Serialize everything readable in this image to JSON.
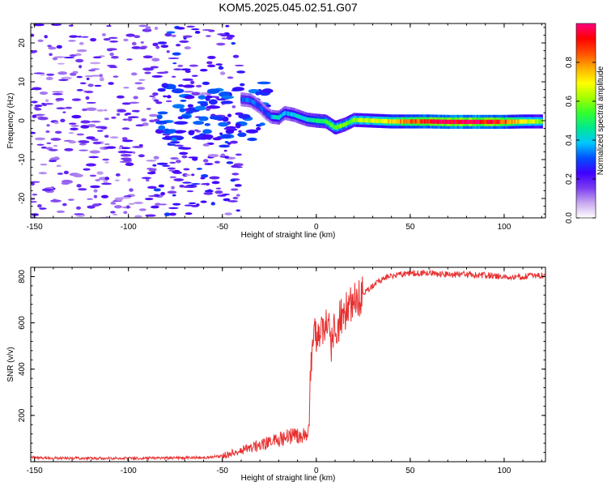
{
  "title": "KOM5.2025.045.02.51.G07",
  "chart_data": [
    {
      "type": "heatmap",
      "xlabel": "Height of straight line (km)",
      "ylabel": "Frequency (Hz)",
      "xlim": [
        -152,
        122
      ],
      "ylim": [
        -25,
        25
      ],
      "x_ticks": [
        -150,
        -100,
        -50,
        0,
        50,
        100
      ],
      "y_ticks": [
        -20,
        -10,
        0,
        10,
        20
      ],
      "colorbar": {
        "label": "Normalized spectral amplitude",
        "range": [
          0,
          1
        ],
        "ticks": [
          "0.0",
          "0.2",
          "0.4",
          "0.6",
          "0.8"
        ],
        "colors": [
          "#ffffff",
          "#c8a8f0",
          "#7a3cf0",
          "#4000ff",
          "#0050ff",
          "#00c8ff",
          "#00e890",
          "#30ff30",
          "#a0ff00",
          "#ffff00",
          "#ffb000",
          "#ff5000",
          "#ff0000",
          "#ff0080"
        ]
      },
      "ridge": {
        "name": "dominant frequency",
        "x": [
          -40,
          -35,
          -30,
          -27,
          -24,
          -20,
          -17,
          -12,
          -8,
          -5,
          0,
          5,
          10,
          15,
          20,
          30,
          40,
          50,
          60,
          70,
          80,
          90,
          100,
          110,
          120
        ],
        "frequency": [
          5.5,
          5.2,
          3.5,
          2.0,
          1.0,
          0.8,
          2.0,
          1.5,
          0.8,
          0.3,
          0.0,
          -0.2,
          -1.8,
          -1.0,
          0.2,
          0.0,
          -0.2,
          -0.2,
          -0.2,
          -0.3,
          -0.3,
          -0.3,
          -0.3,
          -0.2,
          -0.2
        ],
        "amplitude": [
          0.3,
          0.35,
          0.3,
          0.3,
          0.35,
          0.45,
          0.35,
          0.4,
          0.4,
          0.45,
          0.5,
          0.55,
          0.6,
          0.55,
          0.6,
          0.65,
          0.75,
          0.85,
          0.9,
          0.95,
          0.98,
          0.95,
          0.85,
          0.7,
          0.6
        ]
      }
    },
    {
      "type": "line",
      "xlabel": "Height of straight line (km)",
      "ylabel": "SNR (v/v)",
      "xlim": [
        -152,
        122
      ],
      "ylim": [
        0,
        840
      ],
      "x_ticks": [
        -150,
        -100,
        -50,
        0,
        50,
        100
      ],
      "y_ticks": [
        200,
        400,
        600,
        800
      ],
      "color": "#e83030",
      "series": [
        {
          "x": [
            -152,
            -140,
            -120,
            -100,
            -80,
            -60,
            -50,
            -45,
            -40,
            -35,
            -30,
            -25,
            -20,
            -15,
            -10,
            -5,
            -4,
            -3,
            -2,
            0,
            2,
            4,
            6,
            8,
            10,
            12,
            15,
            20,
            25,
            30,
            35,
            40,
            45,
            50,
            55,
            60,
            70,
            80,
            90,
            100,
            110,
            122
          ],
          "values": [
            18,
            15,
            15,
            14,
            16,
            18,
            25,
            35,
            48,
            58,
            72,
            82,
            95,
            110,
            115,
            120,
            125,
            380,
            540,
            560,
            520,
            620,
            580,
            520,
            560,
            600,
            640,
            680,
            720,
            760,
            790,
            805,
            810,
            815,
            812,
            815,
            808,
            810,
            805,
            800,
            800,
            805
          ]
        }
      ]
    }
  ]
}
